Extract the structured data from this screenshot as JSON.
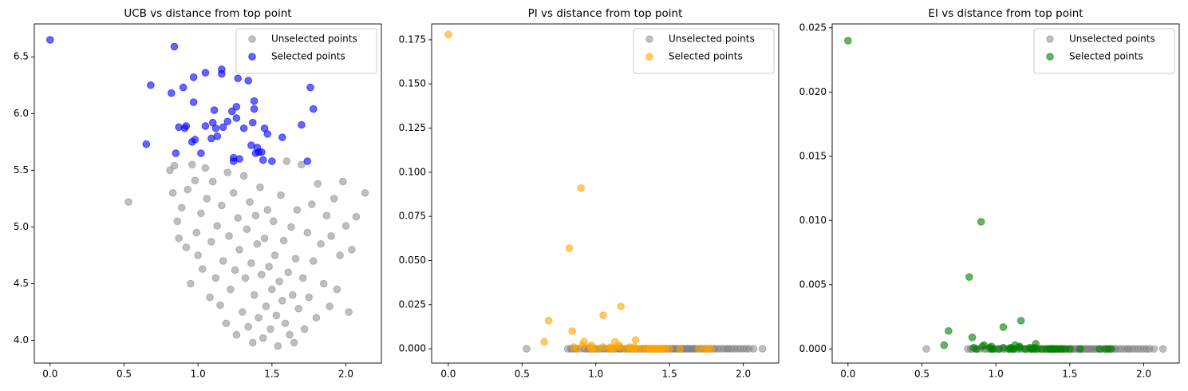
{
  "chart_data": [
    {
      "type": "scatter",
      "title": "UCB vs distance from top point",
      "legend": "upper right",
      "xlim": [
        -0.107,
        2.24
      ],
      "ylim": [
        3.8,
        6.79
      ],
      "xticks": [
        {
          "value": 0,
          "label": "0.0"
        },
        0.5,
        {
          "value": 1,
          "label": "1.0"
        },
        1.5,
        {
          "value": 2,
          "label": "2.0"
        }
      ],
      "yticks": [
        {
          "value": 4,
          "label": "4.0"
        },
        4.5,
        {
          "value": 5,
          "label": "5.0"
        },
        5.5,
        {
          "value": 6,
          "label": "6.0"
        },
        6.5
      ],
      "series": [
        {
          "name": "Unselected points",
          "color": "#808080",
          "x": [
            0.53,
            0.95,
            0.81,
            0.83,
            0.84,
            0.86,
            0.87,
            0.89,
            0.92,
            0.93,
            0.96,
            0.98,
            0.99,
            1.0,
            1.02,
            1.03,
            1.05,
            1.06,
            1.08,
            1.09,
            1.1,
            1.12,
            1.13,
            1.15,
            1.16,
            1.17,
            1.19,
            1.2,
            1.21,
            1.22,
            1.24,
            1.25,
            1.26,
            1.27,
            1.28,
            1.3,
            1.31,
            1.32,
            1.33,
            1.34,
            1.35,
            1.36,
            1.37,
            1.38,
            1.39,
            1.4,
            1.41,
            1.42,
            1.43,
            1.44,
            1.45,
            1.46,
            1.47,
            1.48,
            1.49,
            1.5,
            1.51,
            1.52,
            1.53,
            1.54,
            1.55,
            1.56,
            1.57,
            1.58,
            1.59,
            1.6,
            1.61,
            1.62,
            1.63,
            1.64,
            1.65,
            1.66,
            1.67,
            1.68,
            1.7,
            1.71,
            1.72,
            1.74,
            1.75,
            1.77,
            1.78,
            1.8,
            1.81,
            1.83,
            1.85,
            1.87,
            1.89,
            1.9,
            1.92,
            1.94,
            1.96,
            1.98,
            2.0,
            2.02,
            2.04,
            2.07,
            2.13
          ],
          "values": [
            5.22,
            4.5,
            5.5,
            5.3,
            5.54,
            5.05,
            4.9,
            5.17,
            4.82,
            5.33,
            5.55,
            5.41,
            4.95,
            4.75,
            5.12,
            4.63,
            5.52,
            5.25,
            4.38,
            4.87,
            5.4,
            4.55,
            5.01,
            4.31,
            5.19,
            4.7,
            4.15,
            5.48,
            4.92,
            4.45,
            5.3,
            4.62,
            4.05,
            5.08,
            4.8,
            4.25,
            5.45,
            4.55,
            4.98,
            4.12,
            5.22,
            4.68,
            3.98,
            4.4,
            5.1,
            4.85,
            4.2,
            5.35,
            4.58,
            4.02,
            4.9,
            4.3,
            5.15,
            4.65,
            4.1,
            4.45,
            5.05,
            4.75,
            4.22,
            3.95,
            4.52,
            5.28,
            4.35,
            4.88,
            4.15,
            5.58,
            4.6,
            4.05,
            5.0,
            4.4,
            3.98,
            4.72,
            5.15,
            4.28,
            5.55,
            4.55,
            4.1,
            4.95,
            4.38,
            5.2,
            4.7,
            4.2,
            5.38,
            4.85,
            4.5,
            5.1,
            4.3,
            4.92,
            5.25,
            4.45,
            4.75,
            5.4,
            5.01,
            4.25,
            4.8,
            5.09,
            5.3
          ]
        },
        {
          "name": "Selected points",
          "color": "#0000ff",
          "x": [
            0,
            0.65,
            0.68,
            0.82,
            0.84,
            0.85,
            0.87,
            0.9,
            0.91,
            0.92,
            0.96,
            0.97,
            0.97,
            0.98,
            1.02,
            1.05,
            1.05,
            1.09,
            1.1,
            1.11,
            1.12,
            1.13,
            1.16,
            1.16,
            1.17,
            1.2,
            1.23,
            1.24,
            1.24,
            1.26,
            1.26,
            1.27,
            1.28,
            1.31,
            1.34,
            1.36,
            1.37,
            1.38,
            1.38,
            1.39,
            1.4,
            1.43,
            1.45,
            1.47,
            1.5,
            1.57,
            1.7,
            1.74,
            1.76,
            1.78,
            1.41,
            1.44
          ],
          "values": [
            6.65,
            5.73,
            6.25,
            6.18,
            6.59,
            5.65,
            5.88,
            6.23,
            5.87,
            5.89,
            5.75,
            6.32,
            6.1,
            5.77,
            5.65,
            6.36,
            5.89,
            5.78,
            5.92,
            6.03,
            5.87,
            5.8,
            6.39,
            6.35,
            5.88,
            5.93,
            6.02,
            5.61,
            5.58,
            6.06,
            5.96,
            6.31,
            5.6,
            5.87,
            6.29,
            5.72,
            5.92,
            6.11,
            6.04,
            5.65,
            5.7,
            5.66,
            5.87,
            5.82,
            5.58,
            5.79,
            5.9,
            5.58,
            6.23,
            6.04,
            5.66,
            5.59
          ]
        }
      ]
    },
    {
      "type": "scatter",
      "title": "PI vs distance from top point",
      "legend": "upper right",
      "xlim": [
        -0.113,
        2.24
      ],
      "ylim": [
        -0.0081,
        0.184
      ],
      "xticks": [
        {
          "value": 0,
          "label": "0.0"
        },
        0.5,
        {
          "value": 1,
          "label": "1.0"
        },
        1.5,
        {
          "value": 2,
          "label": "2.0"
        }
      ],
      "yticks": [
        {
          "value": 0,
          "label": "0.000"
        },
        {
          "value": 0.025,
          "label": "0.025"
        },
        {
          "value": 0.05,
          "label": "0.050"
        },
        {
          "value": 0.075,
          "label": "0.075"
        },
        {
          "value": 0.1,
          "label": "0.100"
        },
        {
          "value": 0.125,
          "label": "0.125"
        },
        {
          "value": 0.15,
          "label": "0.150"
        },
        {
          "value": 0.175,
          "label": "0.175"
        }
      ],
      "series": [
        {
          "name": "Unselected points",
          "color": "#808080",
          "x": [
            0.53,
            0.95,
            0.81,
            0.83,
            0.84,
            0.86,
            0.87,
            0.89,
            0.92,
            0.93,
            0.96,
            0.98,
            0.99,
            1.0,
            1.02,
            1.03,
            1.05,
            1.06,
            1.08,
            1.09,
            1.1,
            1.12,
            1.13,
            1.15,
            1.16,
            1.17,
            1.19,
            1.2,
            1.21,
            1.22,
            1.24,
            1.25,
            1.26,
            1.27,
            1.28,
            1.3,
            1.31,
            1.32,
            1.33,
            1.34,
            1.35,
            1.36,
            1.37,
            1.38,
            1.39,
            1.4,
            1.41,
            1.42,
            1.43,
            1.44,
            1.45,
            1.46,
            1.47,
            1.48,
            1.49,
            1.5,
            1.51,
            1.52,
            1.53,
            1.54,
            1.55,
            1.56,
            1.57,
            1.58,
            1.59,
            1.6,
            1.61,
            1.62,
            1.63,
            1.64,
            1.65,
            1.66,
            1.67,
            1.68,
            1.7,
            1.71,
            1.72,
            1.74,
            1.75,
            1.77,
            1.78,
            1.8,
            1.81,
            1.83,
            1.85,
            1.87,
            1.89,
            1.9,
            1.92,
            1.94,
            1.96,
            1.98,
            2.0,
            2.02,
            2.04,
            2.07,
            2.13
          ],
          "values": [
            0,
            0,
            0,
            0,
            0,
            0,
            0,
            0,
            0,
            0,
            0,
            0,
            0,
            0,
            0,
            0,
            0,
            0,
            0,
            0,
            0,
            0,
            0,
            0,
            0,
            0,
            0,
            0,
            0,
            0,
            0,
            0,
            0,
            0,
            0,
            0,
            0,
            0,
            0,
            0,
            0,
            0,
            0,
            0,
            0,
            0,
            0,
            0,
            0,
            0,
            0,
            0,
            0,
            0,
            0,
            0,
            0,
            0,
            0,
            0,
            0,
            0,
            0,
            0,
            0,
            0,
            0,
            0,
            0,
            0,
            0,
            0,
            0,
            0,
            0,
            0,
            0,
            0,
            0,
            0,
            0,
            0,
            0,
            0,
            0,
            0,
            0,
            0,
            0,
            0,
            0,
            0,
            0,
            0,
            0,
            0,
            0
          ]
        },
        {
          "name": "Selected points",
          "color": "#ffa500",
          "x": [
            0,
            0.65,
            0.68,
            0.82,
            0.84,
            0.85,
            0.87,
            0.9,
            0.91,
            0.92,
            0.96,
            0.97,
            0.97,
            0.98,
            1.02,
            1.05,
            1.05,
            1.09,
            1.1,
            1.11,
            1.12,
            1.13,
            1.16,
            1.16,
            1.17,
            1.2,
            1.23,
            1.24,
            1.24,
            1.26,
            1.26,
            1.27,
            1.28,
            1.31,
            1.34,
            1.36,
            1.37,
            1.38,
            1.38,
            1.39,
            1.4,
            1.43,
            1.45,
            1.47,
            1.5,
            1.57,
            1.7,
            1.74,
            1.76,
            1.78,
            1.41,
            1.44
          ],
          "values": [
            0.178,
            0.004,
            0.016,
            0.057,
            0.01,
            0.001,
            0,
            0.091,
            0.002,
            0.004,
            0.001,
            0,
            0.002,
            0,
            0,
            0.001,
            0.019,
            0,
            0.001,
            0,
            0,
            0.004,
            0.002,
            0.001,
            0.024,
            0,
            0.001,
            0,
            0,
            0,
            0.001,
            0.005,
            0,
            0,
            0,
            0,
            0,
            0,
            0,
            0,
            0,
            0,
            0,
            0,
            0,
            0,
            0,
            0,
            0,
            0,
            0,
            0
          ]
        }
      ]
    },
    {
      "type": "scatter",
      "title": "EI vs distance from top point",
      "legend": "upper right",
      "xlim": [
        -0.107,
        2.24
      ],
      "ylim": [
        -0.0011,
        0.0253
      ],
      "xticks": [
        {
          "value": 0,
          "label": "0.0"
        },
        0.5,
        {
          "value": 1,
          "label": "1.0"
        },
        1.5,
        {
          "value": 2,
          "label": "2.0"
        }
      ],
      "yticks": [
        {
          "value": 0,
          "label": "0.000"
        },
        {
          "value": 0.005,
          "label": "0.005"
        },
        {
          "value": 0.01,
          "label": "0.010"
        },
        {
          "value": 0.015,
          "label": "0.015"
        },
        {
          "value": 0.02,
          "label": "0.020"
        },
        {
          "value": 0.025,
          "label": "0.025"
        }
      ],
      "series": [
        {
          "name": "Unselected points",
          "color": "#808080",
          "x": [
            0.53,
            0.95,
            0.81,
            0.83,
            0.84,
            0.86,
            0.87,
            0.89,
            0.92,
            0.93,
            0.96,
            0.98,
            0.99,
            1.0,
            1.02,
            1.03,
            1.05,
            1.06,
            1.08,
            1.09,
            1.1,
            1.12,
            1.13,
            1.15,
            1.16,
            1.17,
            1.19,
            1.2,
            1.21,
            1.22,
            1.24,
            1.25,
            1.26,
            1.27,
            1.28,
            1.3,
            1.31,
            1.32,
            1.33,
            1.34,
            1.35,
            1.36,
            1.37,
            1.38,
            1.39,
            1.4,
            1.41,
            1.42,
            1.43,
            1.44,
            1.45,
            1.46,
            1.47,
            1.48,
            1.49,
            1.5,
            1.51,
            1.52,
            1.53,
            1.54,
            1.55,
            1.56,
            1.57,
            1.58,
            1.59,
            1.6,
            1.61,
            1.62,
            1.63,
            1.64,
            1.65,
            1.66,
            1.67,
            1.68,
            1.7,
            1.71,
            1.72,
            1.74,
            1.75,
            1.77,
            1.78,
            1.8,
            1.81,
            1.83,
            1.85,
            1.87,
            1.89,
            1.9,
            1.92,
            1.94,
            1.96,
            1.98,
            2.0,
            2.02,
            2.04,
            2.07,
            2.13
          ],
          "values": [
            0,
            0,
            0,
            0,
            0,
            0,
            0,
            0,
            0,
            0,
            0,
            0,
            0,
            0,
            0,
            0,
            0,
            0,
            0,
            0,
            0,
            0,
            0,
            0,
            0,
            0,
            0,
            0,
            0,
            0,
            0,
            0,
            0,
            0,
            0,
            0,
            0,
            0,
            0,
            0,
            0,
            0,
            0,
            0,
            0,
            0,
            0,
            0,
            0,
            0,
            0,
            0,
            0,
            0,
            0,
            0,
            0,
            0,
            0,
            0,
            0,
            0,
            0,
            0,
            0,
            0,
            0,
            0,
            0,
            0,
            0,
            0,
            0,
            0,
            0,
            0,
            0,
            0,
            0,
            0,
            0,
            0,
            0,
            0,
            0,
            0,
            0,
            0,
            0,
            0,
            0,
            0,
            0,
            0,
            0,
            0,
            0
          ]
        },
        {
          "name": "Selected points",
          "color": "#008000",
          "x": [
            0,
            0.65,
            0.68,
            0.82,
            0.84,
            0.85,
            0.87,
            0.9,
            0.91,
            0.92,
            0.96,
            0.97,
            0.97,
            0.98,
            1.02,
            1.05,
            1.05,
            1.09,
            1.1,
            1.11,
            1.12,
            1.13,
            1.16,
            1.16,
            1.17,
            1.2,
            1.23,
            1.24,
            1.24,
            1.26,
            1.26,
            1.27,
            1.28,
            1.31,
            1.34,
            1.36,
            1.37,
            1.38,
            1.38,
            1.39,
            1.4,
            1.43,
            1.45,
            1.47,
            1.5,
            1.57,
            1.7,
            1.74,
            1.76,
            1.78,
            1.41,
            1.44
          ],
          "values": [
            0.024,
            0.0003,
            0.0014,
            0.0056,
            0.0009,
            0.0001,
            0,
            0.0099,
            0.0002,
            0.0003,
            0.0001,
            0,
            0.0002,
            0,
            0,
            0.0001,
            0.0017,
            0,
            0.0001,
            0,
            0,
            0.0003,
            0.0002,
            0.0001,
            0.0022,
            0,
            0.0001,
            0,
            0,
            0,
            0.0001,
            0.0004,
            0,
            0,
            0,
            0,
            0,
            0,
            0,
            0,
            0,
            0,
            0,
            0,
            0,
            0,
            0,
            0,
            0,
            0,
            0,
            0
          ]
        }
      ]
    }
  ]
}
